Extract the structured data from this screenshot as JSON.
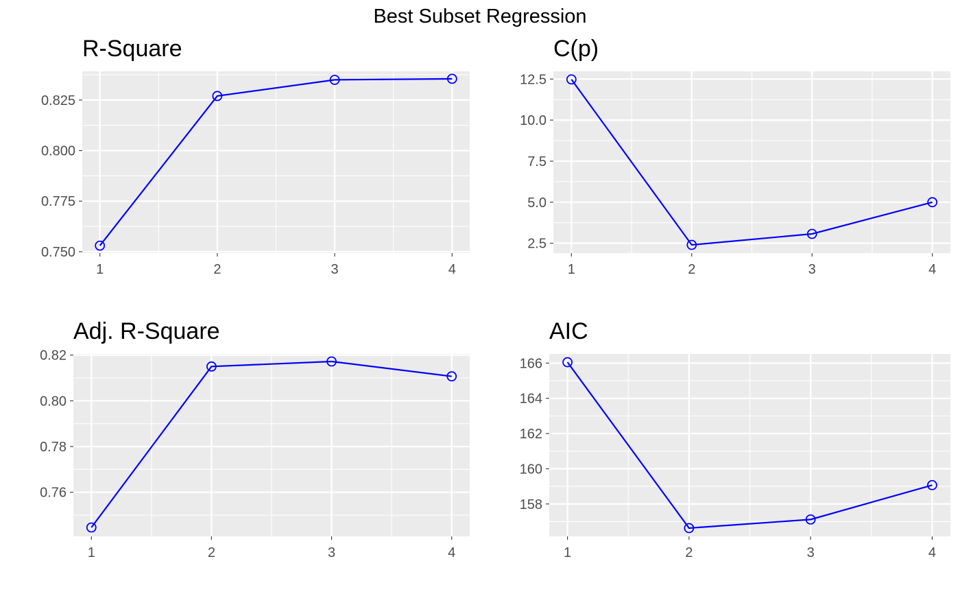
{
  "title": "Best Subset Regression",
  "chart_data": [
    {
      "type": "line",
      "title": "R-Square",
      "xlabel": "",
      "ylabel": "",
      "x": [
        1,
        2,
        3,
        4
      ],
      "values": [
        0.753,
        0.827,
        0.835,
        0.8355
      ],
      "xticks": [
        1,
        2,
        3,
        4
      ],
      "xtick_labels": [
        "1",
        "2",
        "3",
        "4"
      ],
      "xlim": [
        0.85,
        4.15
      ],
      "yticks": [
        0.75,
        0.775,
        0.8,
        0.825
      ],
      "ytick_labels": [
        "0.750",
        "0.775",
        "0.800",
        "0.825"
      ],
      "ylim": [
        0.7493,
        0.8392
      ],
      "grid": true,
      "color": "#0000ff",
      "marker": "open-circle"
    },
    {
      "type": "line",
      "title": "C(p)",
      "xlabel": "",
      "ylabel": "",
      "x": [
        1,
        2,
        3,
        4
      ],
      "values": [
        12.48,
        2.4,
        3.07,
        5.0
      ],
      "xticks": [
        1,
        2,
        3,
        4
      ],
      "xtick_labels": [
        "1",
        "2",
        "3",
        "4"
      ],
      "xlim": [
        0.85,
        4.15
      ],
      "yticks": [
        2.5,
        5.0,
        7.5,
        10.0,
        12.5
      ],
      "ytick_labels": [
        "2.5",
        "5.0",
        "7.5",
        "10.0",
        "12.5"
      ],
      "ylim": [
        1.9,
        12.97
      ],
      "grid": true,
      "color": "#0000ff",
      "marker": "open-circle"
    },
    {
      "type": "line",
      "title": "Adj. R-Square",
      "xlabel": "",
      "ylabel": "",
      "x": [
        1,
        2,
        3,
        4
      ],
      "values": [
        0.7446,
        0.815,
        0.8172,
        0.8107
      ],
      "xticks": [
        1,
        2,
        3,
        4
      ],
      "xtick_labels": [
        "1",
        "2",
        "3",
        "4"
      ],
      "xlim": [
        0.85,
        4.15
      ],
      "yticks": [
        0.76,
        0.78,
        0.8,
        0.82
      ],
      "ytick_labels": [
        "0.76",
        "0.78",
        "0.80",
        "0.82"
      ],
      "ylim": [
        0.7407,
        0.8205
      ],
      "grid": true,
      "color": "#0000ff",
      "marker": "open-circle"
    },
    {
      "type": "line",
      "title": "AIC",
      "xlabel": "",
      "ylabel": "",
      "x": [
        1,
        2,
        3,
        4
      ],
      "values": [
        166.05,
        156.63,
        157.12,
        159.07
      ],
      "xticks": [
        1,
        2,
        3,
        4
      ],
      "xtick_labels": [
        "1",
        "2",
        "3",
        "4"
      ],
      "xlim": [
        0.85,
        4.15
      ],
      "yticks": [
        158,
        160,
        162,
        164,
        166
      ],
      "ytick_labels": [
        "158",
        "160",
        "162",
        "164",
        "166"
      ],
      "ylim": [
        156.16,
        166.52
      ],
      "grid": true,
      "color": "#0000ff",
      "marker": "open-circle"
    }
  ]
}
